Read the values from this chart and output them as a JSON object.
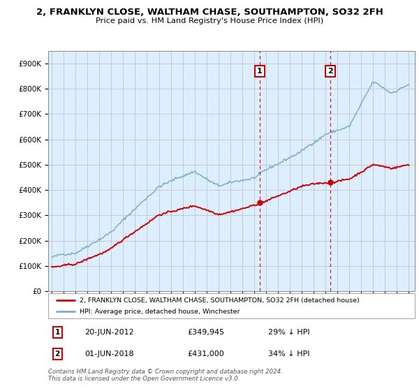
{
  "title": "2, FRANKLYN CLOSE, WALTHAM CHASE, SOUTHAMPTON, SO32 2FH",
  "subtitle": "Price paid vs. HM Land Registry's House Price Index (HPI)",
  "ylim": [
    0,
    950000
  ],
  "yticks": [
    0,
    100000,
    200000,
    300000,
    400000,
    500000,
    600000,
    700000,
    800000,
    900000
  ],
  "ytick_labels": [
    "£0",
    "£100K",
    "£200K",
    "£300K",
    "£400K",
    "£500K",
    "£600K",
    "£700K",
    "£800K",
    "£900K"
  ],
  "sale1_year": 2012.47,
  "sale1_price": 349945,
  "sale1_label": "20-JUN-2012",
  "sale1_pct": "29% ↓ HPI",
  "sale2_year": 2018.42,
  "sale2_price": 431000,
  "sale2_label": "01-JUN-2018",
  "sale2_pct": "34% ↓ HPI",
  "legend_red": "2, FRANKLYN CLOSE, WALTHAM CHASE, SOUTHAMPTON, SO32 2FH (detached house)",
  "legend_blue": "HPI: Average price, detached house, Winchester",
  "footnote1": "Contains HM Land Registry data © Crown copyright and database right 2024.",
  "footnote2": "This data is licensed under the Open Government Licence v3.0.",
  "red_color": "#cc0000",
  "blue_color": "#7aadd4",
  "plot_bg": "#ddeeff",
  "white": "#ffffff"
}
